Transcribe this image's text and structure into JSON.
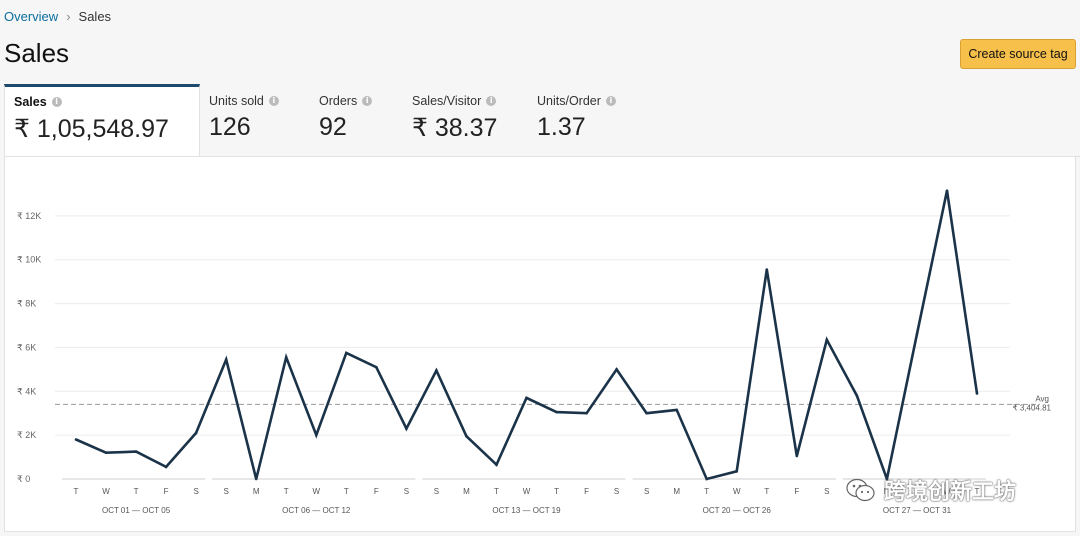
{
  "breadcrumb": {
    "root": "Overview",
    "current": "Sales"
  },
  "header": {
    "title": "Sales",
    "button_label": "Create source tag"
  },
  "tabs": [
    {
      "label": "Sales",
      "value": "₹ 1,05,548.97",
      "active": true
    },
    {
      "label": "Units sold",
      "value": "126"
    },
    {
      "label": "Orders",
      "value": "92"
    },
    {
      "label": "Sales/Visitor",
      "value": "₹ 38.37"
    },
    {
      "label": "Units/Order",
      "value": "1.37"
    }
  ],
  "watermark": "跨境创新工坊",
  "colors": {
    "line": "#1b3349",
    "accent": "#1f4a6e",
    "button": "#f7c04b"
  },
  "chart_data": {
    "type": "line",
    "y_ticks": [
      {
        "value": 0,
        "label": "₹ 0"
      },
      {
        "value": 2000,
        "label": "₹ 2K"
      },
      {
        "value": 4000,
        "label": "₹ 4K"
      },
      {
        "value": 6000,
        "label": "₹ 6K"
      },
      {
        "value": 8000,
        "label": "₹ 8K"
      },
      {
        "value": 10000,
        "label": "₹ 10K"
      },
      {
        "value": 12000,
        "label": "₹ 12K"
      }
    ],
    "ylim": [
      0,
      14000
    ],
    "x_days": [
      "T",
      "W",
      "T",
      "F",
      "S",
      "S",
      "M",
      "T",
      "W",
      "T",
      "F",
      "S",
      "S",
      "M",
      "T",
      "W",
      "T",
      "F",
      "S",
      "S",
      "M",
      "T",
      "W",
      "T",
      "F",
      "S",
      "S",
      "M",
      "T",
      "W",
      "T"
    ],
    "week_groups": [
      {
        "label": "OCT 01 — OCT 05",
        "start": 0,
        "end": 4
      },
      {
        "label": "OCT 06 — OCT 12",
        "start": 5,
        "end": 11
      },
      {
        "label": "OCT 13 — OCT 19",
        "start": 12,
        "end": 18
      },
      {
        "label": "OCT 20 — OCT 26",
        "start": 19,
        "end": 25
      },
      {
        "label": "OCT 27 — OCT 31",
        "start": 26,
        "end": 30
      }
    ],
    "values": [
      1800,
      1200,
      1250,
      550,
      2100,
      5450,
      0,
      5550,
      2000,
      5750,
      5100,
      2300,
      4950,
      1950,
      650,
      3700,
      3050,
      3000,
      5000,
      3000,
      3150,
      0,
      350,
      9550,
      1050,
      6350,
      3800,
      0,
      6600,
      13150,
      3900
    ],
    "average": {
      "value": 3404.81,
      "label": "Avg",
      "value_label": "₹ 3,404.81"
    }
  }
}
